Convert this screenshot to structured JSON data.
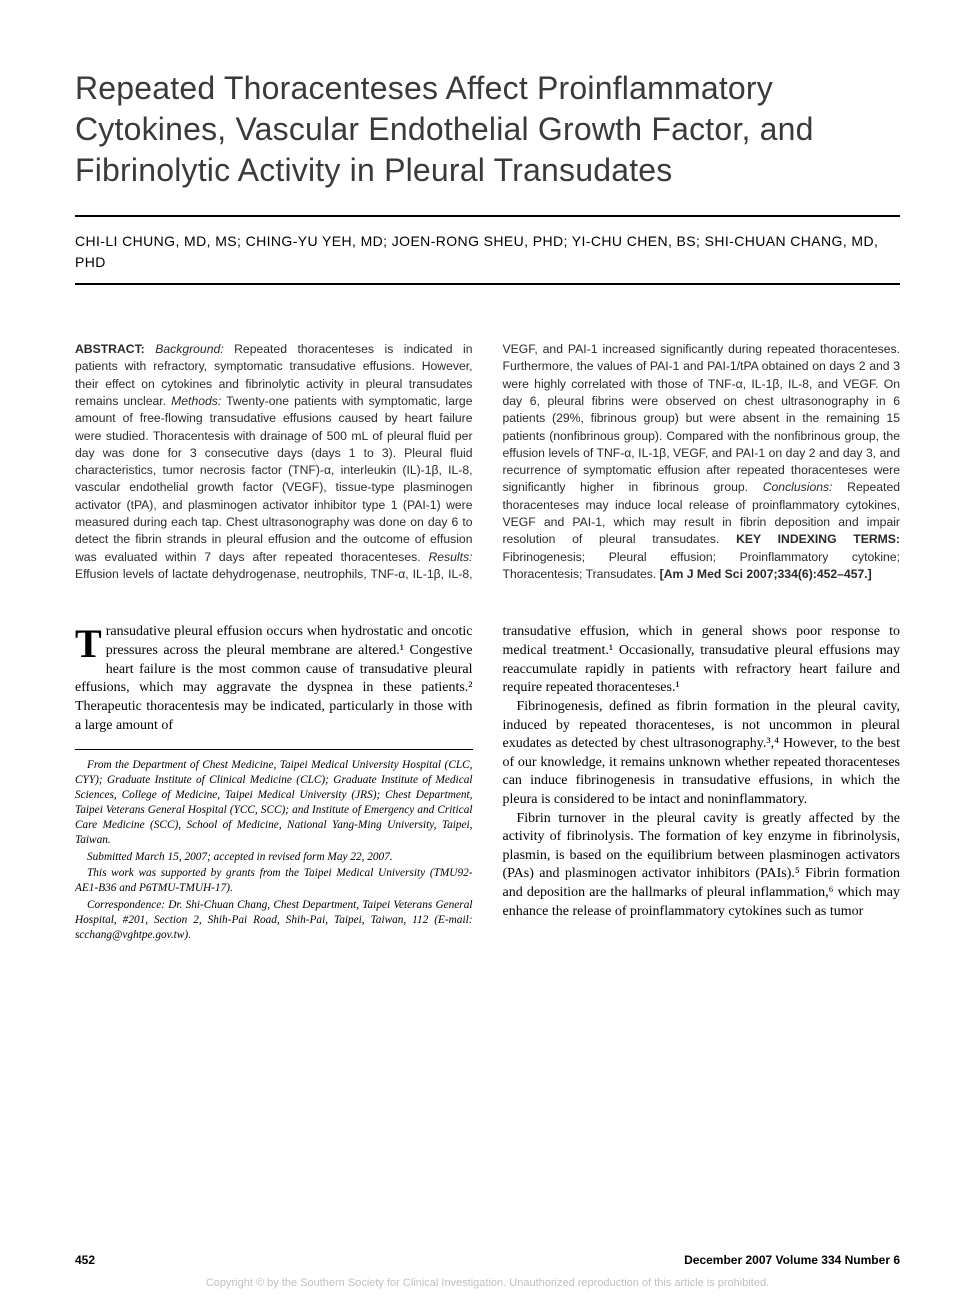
{
  "title": "Repeated Thoracenteses Affect Proinflammatory Cytokines, Vascular Endothelial Growth Factor, and Fibrinolytic Activity in Pleural Transudates",
  "authors": "CHI-LI CHUNG, MD, MS; CHING-YU YEH, MD; JOEN-RONG SHEU, PHD; YI-CHU CHEN, BS; SHI-CHUAN CHANG, MD, PHD",
  "abstract": {
    "label": "ABSTRACT:",
    "background_label": "Background:",
    "background": " Repeated thoracenteses is indicated in patients with refractory, symptomatic transudative effusions. However, their effect on cytokines and fibrinolytic activity in pleural transudates remains unclear. ",
    "methods_label": "Methods:",
    "methods": " Twenty-one patients with symptomatic, large amount of free-flowing transudative effusions caused by heart failure were studied. Thoracentesis with drainage of 500 mL of pleural fluid per day was done for 3 consecutive days (days 1 to 3). Pleural fluid characteristics, tumor necrosis factor (TNF)-α, interleukin (IL)-1β, IL-8, vascular endothelial growth factor (VEGF), tissue-type plasminogen activator (tPA), and plasminogen activator inhibitor type 1 (PAI-1) were measured during each tap. Chest ultrasonography was done on day 6 to detect the fibrin strands in pleural effusion and the outcome of effusion was evaluated within 7 days after repeated thoracenteses. ",
    "results_label": "Results:",
    "results": " Effusion levels of lactate dehydrogenase, neutrophils, TNF-α, IL-1β, IL-8, VEGF, and PAI-1 increased significantly during repeated thoracenteses. Furthermore, the values of PAI-1 and PAI-1/tPA obtained on days 2 and 3 were highly correlated with those of TNF-α, IL-1β, IL-8, and VEGF. On day 6, pleural fibrins were observed on chest ultrasonography in 6 patients (29%, fibrinous group) but were absent in the remaining 15 patients (nonfibrinous group). Compared with the nonfibrinous group, the effusion levels of TNF-α, IL-1β, VEGF, and PAI-1 on day 2 and day 3, and recurrence of symptomatic effusion after repeated thoracenteses were significantly higher in fibrinous group. ",
    "conclusions_label": "Conclusions:",
    "conclusions": " Repeated thoracenteses may induce local release of proinflammatory cytokines, VEGF and PAI-1, which may result in fibrin deposition and impair resolution of pleural transudates. ",
    "key_terms_label": "KEY INDEXING TERMS:",
    "key_terms": " Fibrinogenesis; Pleural effusion; Proinflammatory cytokine; Thoracentesis; Transudates. ",
    "citation": "[Am J Med Sci 2007;334(6):452–457.]"
  },
  "body": {
    "dropcap": "T",
    "p1": "ransudative pleural effusion occurs when hydrostatic and oncotic pressures across the pleural membrane are altered.¹ Congestive heart failure is the most common cause of transudative pleural effusions, which may aggravate the dyspnea in these patients.² Therapeutic thoracentesis may be indicated, particularly in those with a large amount of",
    "p2": "transudative effusion, which in general shows poor response to medical treatment.¹ Occasionally, transudative pleural effusions may reaccumulate rapidly in patients with refractory heart failure and require repeated thoracenteses.¹",
    "p3": "Fibrinogenesis, defined as fibrin formation in the pleural cavity, induced by repeated thoracenteses, is not uncommon in pleural exudates as detected by chest ultrasonography.³,⁴ However, to the best of our knowledge, it remains unknown whether repeated thoracenteses can induce fibrinogenesis in transudative effusions, in which the pleura is considered to be intact and noninflammatory.",
    "p4": "Fibrin turnover in the pleural cavity is greatly affected by the activity of fibrinolysis. The formation of key enzyme in fibrinolysis, plasmin, is based on the equilibrium between plasminogen activators (PAs) and plasminogen activator inhibitors (PAIs).⁵ Fibrin formation and deposition are the hallmarks of pleural inflammation,⁶ which may enhance the release of proinflammatory cytokines such as tumor"
  },
  "footnotes": {
    "affiliation": "From the Department of Chest Medicine, Taipei Medical University Hospital (CLC, CYY); Graduate Institute of Clinical Medicine (CLC); Graduate Institute of Medical Sciences, College of Medicine, Taipei Medical University (JRS); Chest Department, Taipei Veterans General Hospital (YCC, SCC); and Institute of Emergency and Critical Care Medicine (SCC), School of Medicine, National Yang-Ming University, Taipei, Taiwan.",
    "submitted": "Submitted March 15, 2007; accepted in revised form May 22, 2007.",
    "support": "This work was supported by grants from the Taipei Medical University (TMU92-AE1-B36 and P6TMU-TMUH-17).",
    "correspondence": "Correspondence: Dr. Shi-Chuan Chang, Chest Department, Taipei Veterans General Hospital, #201, Section 2, Shih-Pai Road, Shih-Pai, Taipei, Taiwan, 112 (E-mail: scchang@vghtpe.gov.tw)."
  },
  "footer": {
    "page": "452",
    "issue": "December 2007 Volume 334 Number 6"
  },
  "copyright": "Copyright © by the Southern Society for Clinical Investigation. Unauthorized reproduction of this article is prohibited."
}
